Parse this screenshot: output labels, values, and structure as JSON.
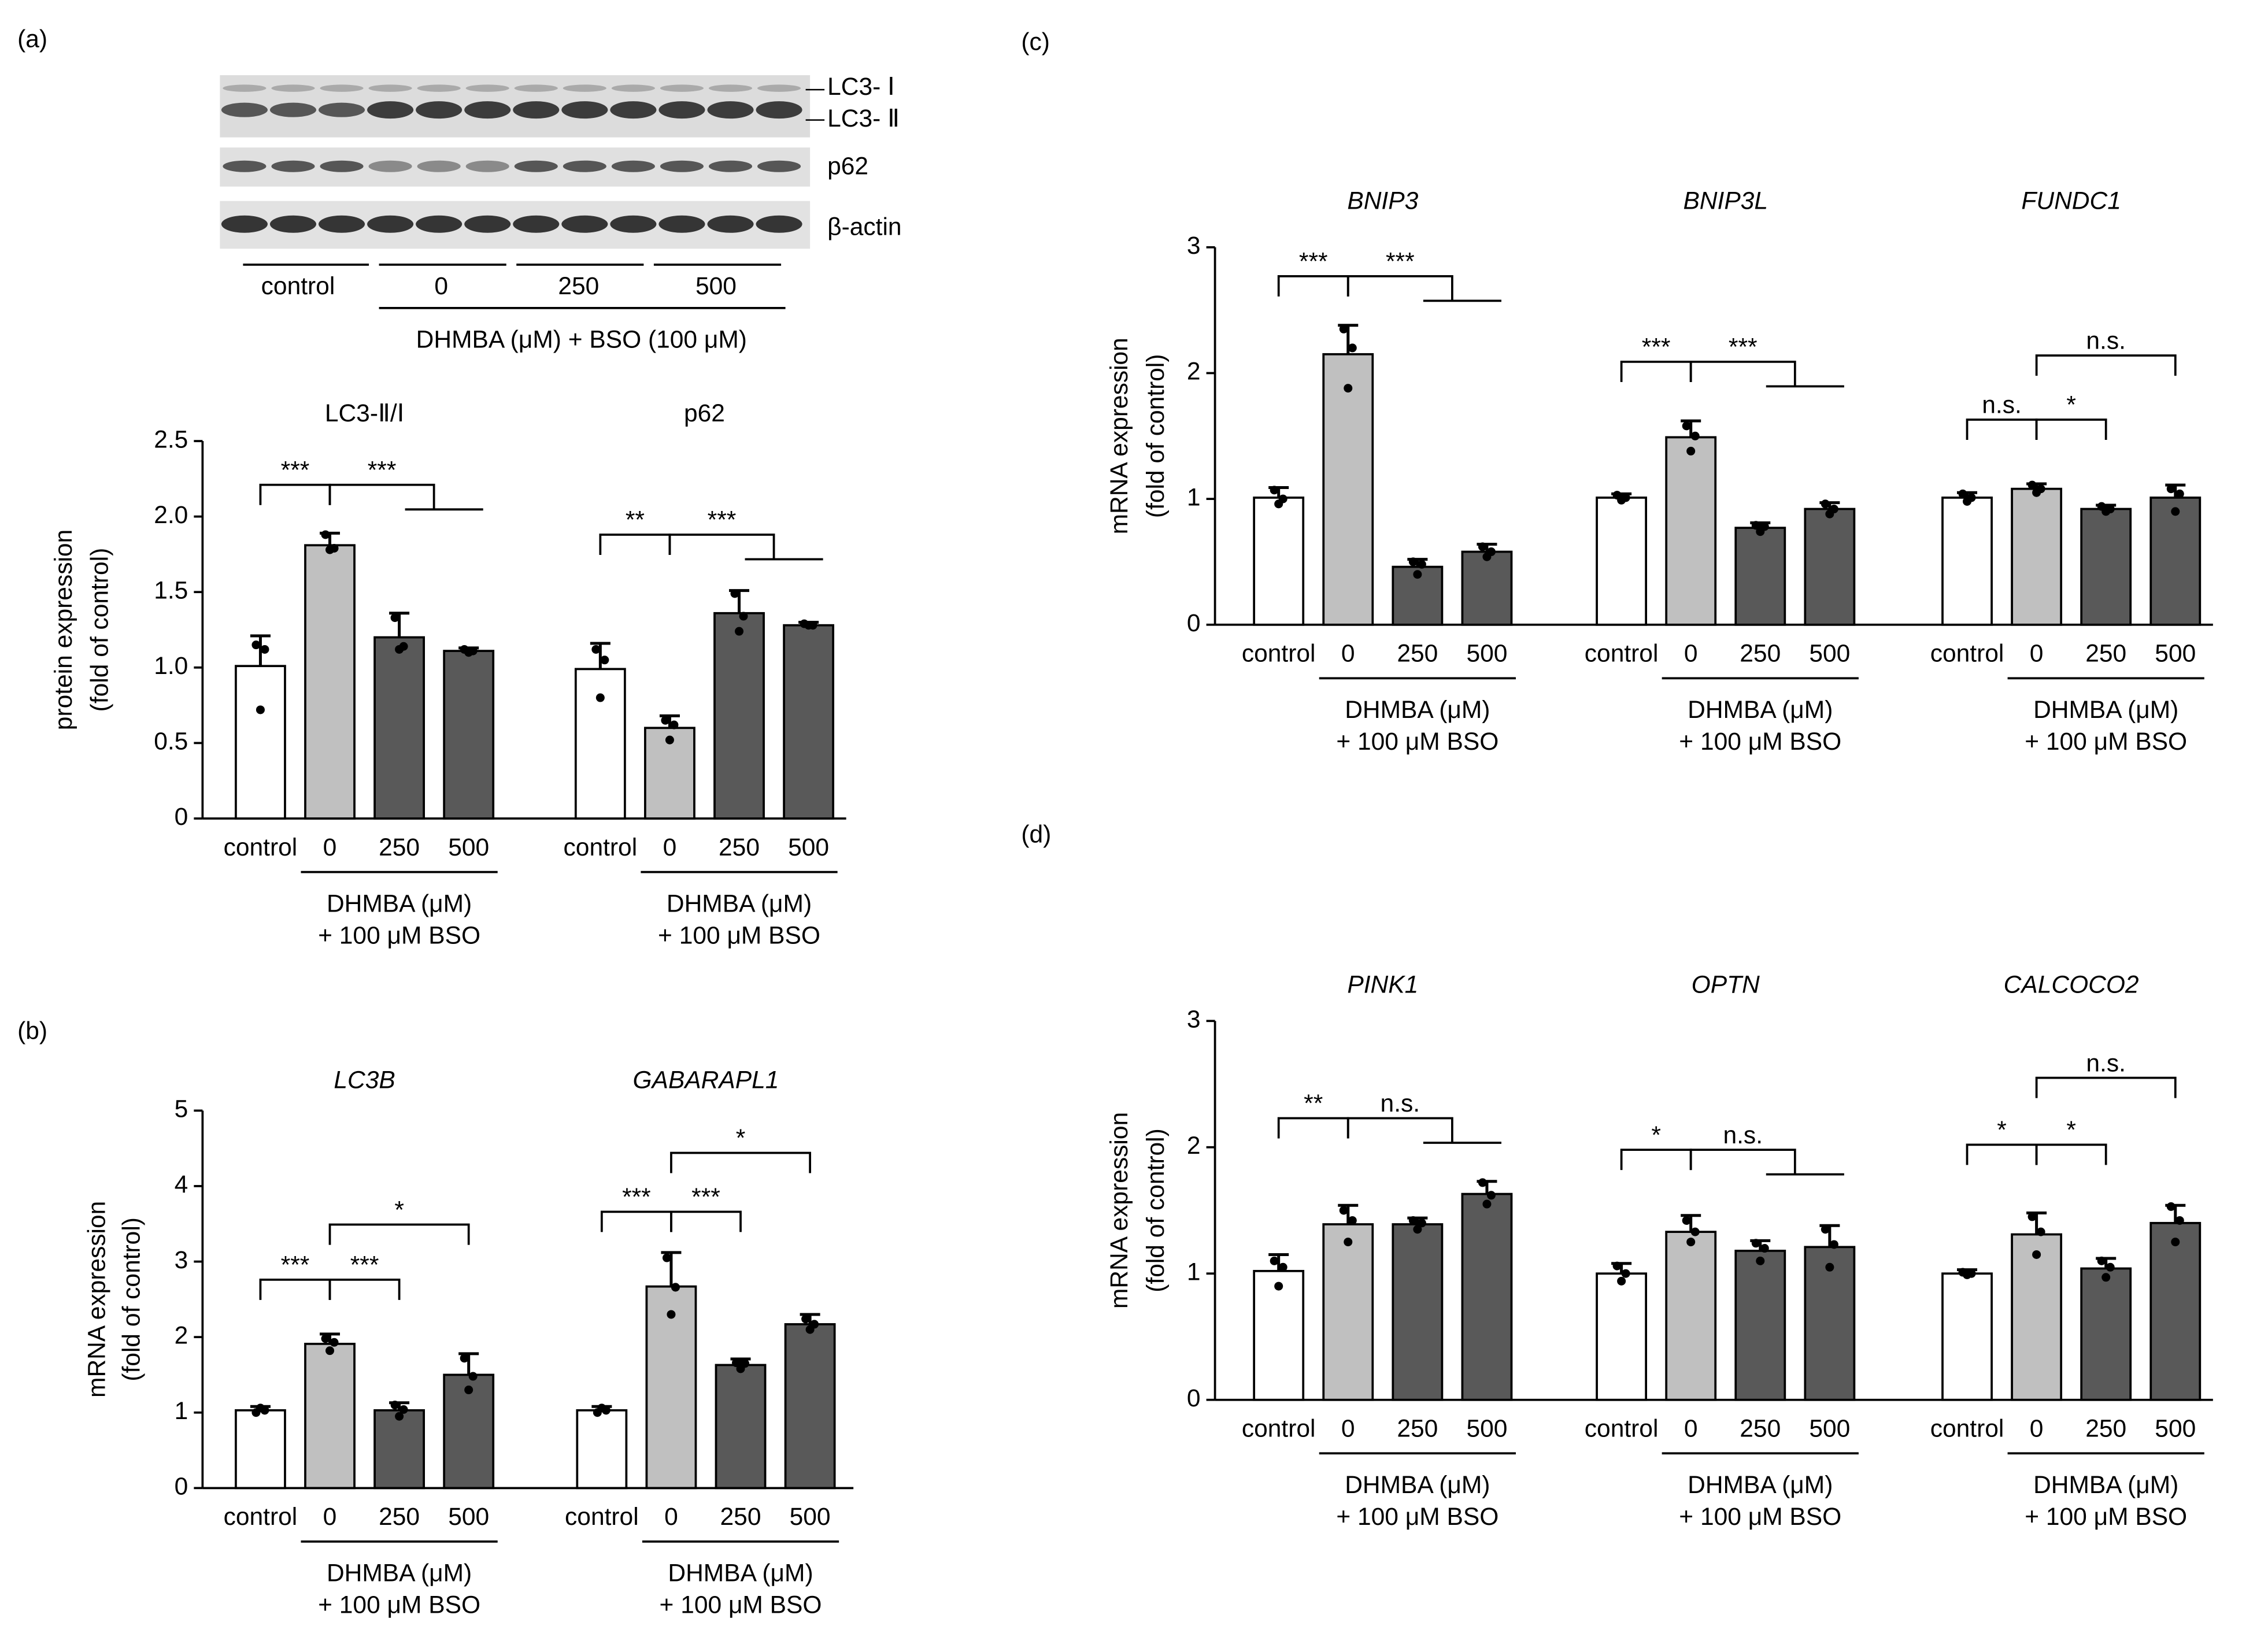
{
  "panel_labels": [
    "(a)",
    "(b)",
    "(c)",
    "(d)"
  ],
  "blot": {
    "bands": [
      "LC3- Ⅰ",
      "LC3- Ⅱ",
      "p62",
      "β-actin"
    ],
    "groups": [
      "control",
      "0",
      "250",
      "500"
    ],
    "treatment": "DHMBA (μM) + BSO (100 μM)"
  },
  "chart_data": [
    {
      "type": "bar",
      "ylabel": [
        "protein expression",
        "(fold of control)"
      ],
      "categories": [
        "control",
        "0",
        "250",
        "500"
      ],
      "treatment": [
        "DHMBA (μM)",
        "+ 100 μM BSO"
      ],
      "colors": [
        "#ffffff",
        "#c0c0c0",
        "#595959",
        "#595959"
      ],
      "ylim": [
        0,
        2.5
      ],
      "yticks": [
        0,
        0.5,
        {
          "value": 1,
          "label": "1.0"
        },
        1.5,
        {
          "value": 2,
          "label": "2.0"
        },
        2.5
      ],
      "groups": [
        {
          "title": "LC3-Ⅱ/Ⅰ",
          "values": [
            1.01,
            1.81,
            1.2,
            1.11
          ],
          "errors": [
            0.2,
            0.08,
            0.16,
            0.02
          ],
          "points": [
            [
              1.15,
              0.72,
              1.12
            ],
            [
              1.88,
              1.78,
              1.79
            ],
            [
              1.33,
              1.12,
              1.14
            ],
            [
              1.12,
              1.1,
              1.11
            ]
          ],
          "significance": [
            "***",
            "***"
          ]
        },
        {
          "title": "p62",
          "values": [
            0.99,
            0.6,
            1.36,
            1.28
          ],
          "errors": [
            0.17,
            0.08,
            0.15,
            0.02
          ],
          "points": [
            [
              1.12,
              0.8,
              1.05
            ],
            [
              0.65,
              0.52,
              0.62
            ],
            [
              1.49,
              1.24,
              1.34
            ],
            [
              1.29,
              1.28,
              1.28
            ]
          ],
          "significance": [
            "**",
            "***"
          ]
        }
      ]
    },
    {
      "type": "bar",
      "ylabel": [
        "mRNA expression",
        "(fold of control)"
      ],
      "categories": [
        "control",
        "0",
        "250",
        "500"
      ],
      "treatment": [
        "DHMBA (μM)",
        "+ 100 μM BSO"
      ],
      "colors": [
        "#ffffff",
        "#c0c0c0",
        "#595959",
        "#595959"
      ],
      "ylim": [
        0,
        5
      ],
      "yticks": [
        0,
        1,
        2,
        3,
        4,
        5
      ],
      "groups": [
        {
          "title": "LC3B",
          "title_style": "italic",
          "values": [
            1.03,
            1.91,
            1.03,
            1.5
          ],
          "errors": [
            0.05,
            0.13,
            0.1,
            0.28
          ],
          "points": [
            [
              1.0,
              1.06,
              1.03
            ],
            [
              1.98,
              1.82,
              1.93
            ],
            [
              1.1,
              0.95,
              1.04
            ],
            [
              1.72,
              1.3,
              1.48
            ]
          ],
          "significance": [
            "***",
            "***",
            "*"
          ]
        },
        {
          "title": "GABARAPL1",
          "title_style": "italic",
          "values": [
            1.03,
            2.67,
            1.63,
            2.17
          ],
          "errors": [
            0.05,
            0.45,
            0.08,
            0.13
          ],
          "points": [
            [
              1.0,
              1.06,
              1.03
            ],
            [
              3.05,
              2.3,
              2.66
            ],
            [
              1.66,
              1.58,
              1.65
            ],
            [
              2.24,
              2.1,
              2.17
            ]
          ],
          "significance": [
            "***",
            "***",
            "*"
          ]
        }
      ]
    },
    {
      "type": "bar",
      "ylabel": [
        "mRNA expression",
        "(fold of control)"
      ],
      "categories": [
        "control",
        "0",
        "250",
        "500"
      ],
      "treatment": [
        "DHMBA (μM)",
        "+ 100 μM BSO"
      ],
      "colors": [
        "#ffffff",
        "#c0c0c0",
        "#595959",
        "#595959"
      ],
      "ylim": [
        0,
        3
      ],
      "yticks": [
        0,
        1,
        2,
        3
      ],
      "groups": [
        {
          "title": "BNIP3",
          "title_style": "italic",
          "values": [
            1.01,
            2.15,
            0.46,
            0.58
          ],
          "errors": [
            0.08,
            0.23,
            0.06,
            0.06
          ],
          "points": [
            [
              1.07,
              0.96,
              1.0
            ],
            [
              2.35,
              1.88,
              2.2
            ],
            [
              0.5,
              0.4,
              0.48
            ],
            [
              0.62,
              0.54,
              0.58
            ]
          ],
          "significance": [
            "***",
            "***"
          ]
        },
        {
          "title": "BNIP3L",
          "title_style": "italic",
          "values": [
            1.01,
            1.49,
            0.77,
            0.92
          ],
          "errors": [
            0.03,
            0.13,
            0.04,
            0.05
          ],
          "points": [
            [
              1.03,
              0.99,
              1.01
            ],
            [
              1.58,
              1.38,
              1.5
            ],
            [
              0.79,
              0.74,
              0.78
            ],
            [
              0.96,
              0.88,
              0.92
            ]
          ],
          "significance": [
            "***",
            "***"
          ]
        },
        {
          "title": "FUNDC1",
          "title_style": "italic",
          "values": [
            1.01,
            1.08,
            0.92,
            1.01
          ],
          "errors": [
            0.04,
            0.04,
            0.03,
            0.1
          ],
          "points": [
            [
              1.04,
              0.98,
              1.01
            ],
            [
              1.11,
              1.05,
              1.08
            ],
            [
              0.94,
              0.9,
              0.92
            ],
            [
              1.08,
              0.9,
              1.04
            ]
          ],
          "significance": [
            "n.s.",
            "*",
            "n.s."
          ]
        }
      ]
    },
    {
      "type": "bar",
      "ylabel": [
        "mRNA expression",
        "(fold of control)"
      ],
      "categories": [
        "control",
        "0",
        "250",
        "500"
      ],
      "treatment": [
        "DHMBA (μM)",
        "+ 100 μM BSO"
      ],
      "colors": [
        "#ffffff",
        "#c0c0c0",
        "#595959",
        "#595959"
      ],
      "ylim": [
        0,
        3
      ],
      "yticks": [
        0,
        1,
        2,
        3
      ],
      "groups": [
        {
          "title": "PINK1",
          "title_style": "italic",
          "values": [
            1.02,
            1.39,
            1.39,
            1.63
          ],
          "errors": [
            0.13,
            0.15,
            0.05,
            0.1
          ],
          "points": [
            [
              1.1,
              0.9,
              1.05
            ],
            [
              1.5,
              1.25,
              1.42
            ],
            [
              1.42,
              1.35,
              1.4
            ],
            [
              1.72,
              1.55,
              1.62
            ]
          ],
          "significance": [
            "**",
            "n.s."
          ]
        },
        {
          "title": "OPTN",
          "title_style": "italic",
          "values": [
            1.0,
            1.33,
            1.18,
            1.21
          ],
          "errors": [
            0.08,
            0.13,
            0.08,
            0.17
          ],
          "points": [
            [
              1.06,
              0.94,
              1.0
            ],
            [
              1.42,
              1.25,
              1.33
            ],
            [
              1.24,
              1.1,
              1.2
            ],
            [
              1.35,
              1.05,
              1.23
            ]
          ],
          "significance": [
            "*",
            "n.s."
          ]
        },
        {
          "title": "CALCOCO2",
          "title_style": "italic",
          "values": [
            1.0,
            1.31,
            1.04,
            1.4
          ],
          "errors": [
            0.03,
            0.17,
            0.08,
            0.14
          ],
          "points": [
            [
              1.01,
              0.99,
              1.0
            ],
            [
              1.45,
              1.15,
              1.33
            ],
            [
              1.1,
              0.97,
              1.05
            ],
            [
              1.53,
              1.25,
              1.42
            ]
          ],
          "significance": [
            "*",
            "*",
            "n.s."
          ]
        }
      ]
    }
  ]
}
